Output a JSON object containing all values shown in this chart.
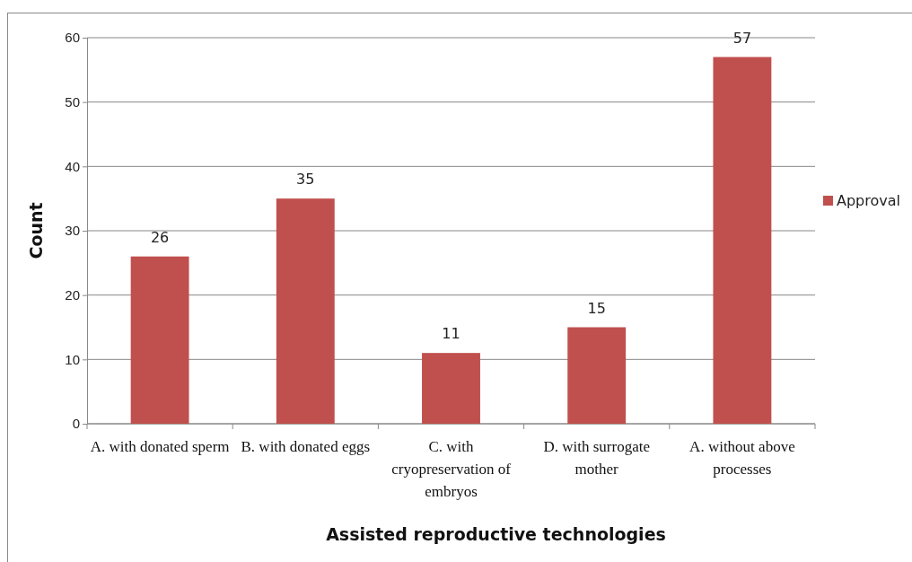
{
  "chart_data": {
    "type": "bar",
    "xlabel": "Assisted reproductive technologies",
    "ylabel": "Count",
    "categories": [
      "A. with donated sperm",
      "B. with donated eggs",
      "C. with cryopreservation of embryos",
      "D. with surrogate mother",
      "A. without above processes"
    ],
    "series": [
      {
        "name": "Approval",
        "color": "#c0504d",
        "values": [
          26,
          35,
          11,
          15,
          57
        ]
      }
    ],
    "ylim": [
      0,
      60
    ],
    "yticks": [
      0,
      10,
      20,
      30,
      40,
      50,
      60
    ],
    "grid": "y",
    "legend": "right",
    "data_labels": true
  }
}
